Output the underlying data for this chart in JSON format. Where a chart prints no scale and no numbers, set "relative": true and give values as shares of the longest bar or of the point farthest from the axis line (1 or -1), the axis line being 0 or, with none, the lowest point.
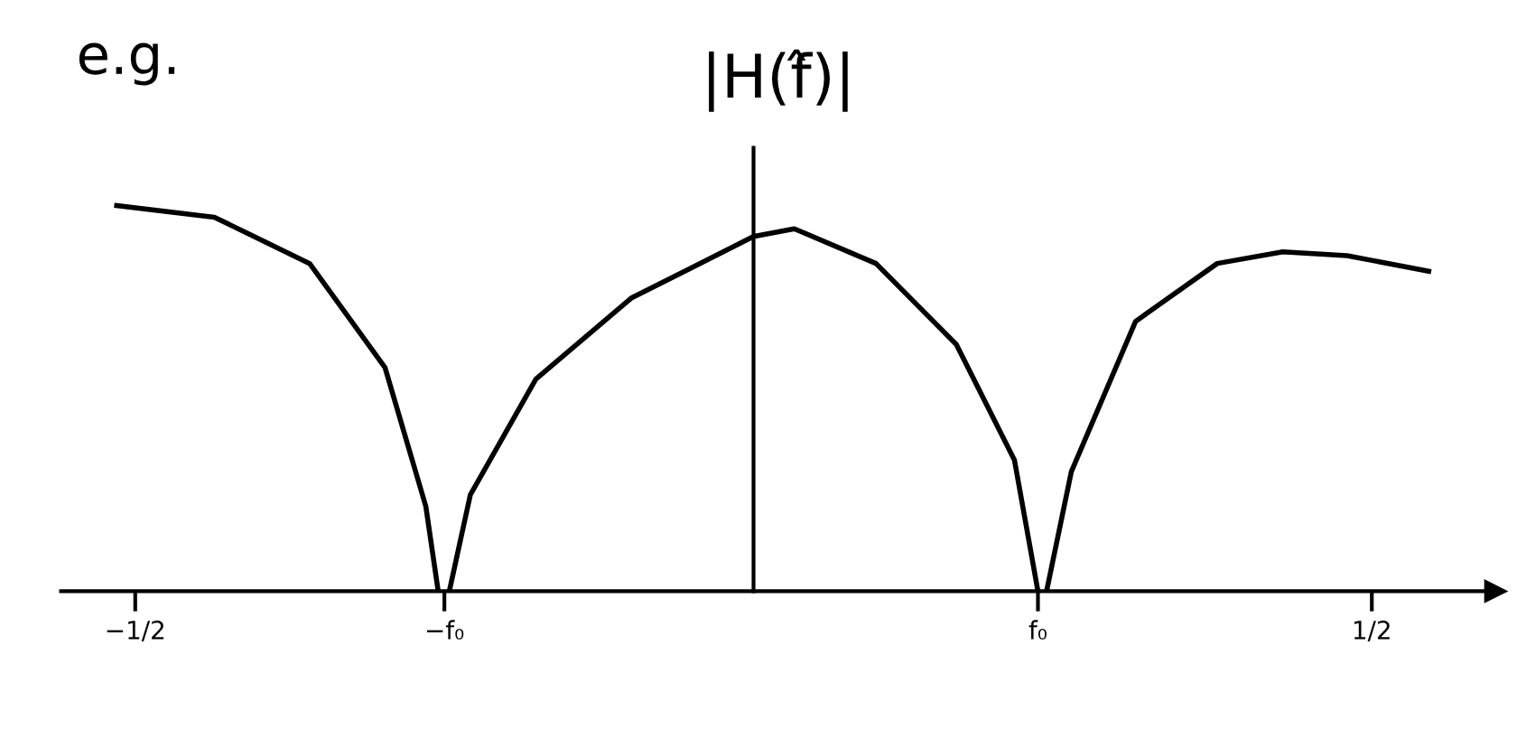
{
  "chart_data": {
    "type": "line",
    "title": "|H(f̂)|",
    "annotations": [
      "e.g."
    ],
    "relative": true,
    "tick_labels": "x",
    "xlim": [
      -0.56,
      0.6
    ],
    "xticks": [
      {
        "value": -0.5,
        "label": "−1/2"
      },
      {
        "value": -0.25,
        "label": "−f₀"
      },
      {
        "value": 0.23,
        "label": "f₀"
      },
      {
        "value": 0.5,
        "label": "1/2"
      }
    ],
    "series": [
      {
        "color": "#000000",
        "x": [
          -0.515,
          -0.436,
          -0.359,
          -0.298,
          -0.265,
          -0.255
        ],
        "values": [
          1.0,
          0.97,
          0.85,
          0.58,
          0.22,
          0
        ]
      },
      {
        "color": "#000000",
        "x": [
          -0.246,
          -0.229,
          -0.176,
          -0.099,
          0,
          0.033,
          0.099,
          0.164,
          0.211,
          0.23
        ],
        "values": [
          0,
          0.25,
          0.55,
          0.76,
          0.92,
          0.94,
          0.85,
          0.64,
          0.34,
          0
        ]
      },
      {
        "color": "#000000",
        "x": [
          0.237,
          0.257,
          0.309,
          0.375,
          0.428,
          0.48,
          0.546
        ],
        "values": [
          0,
          0.31,
          0.7,
          0.85,
          0.88,
          0.87,
          0.83
        ]
      }
    ]
  }
}
